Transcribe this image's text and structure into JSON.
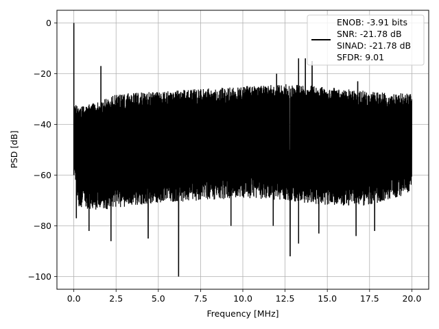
{
  "chart_data": {
    "type": "line",
    "title": "",
    "xlabel": "Frequency [MHz]",
    "ylabel": "PSD [dB]",
    "xlim": [
      -1.0,
      21.0
    ],
    "ylim": [
      -105,
      5
    ],
    "xticks": [
      0.0,
      2.5,
      5.0,
      7.5,
      10.0,
      12.5,
      15.0,
      17.5,
      20.0
    ],
    "xtick_labels": [
      "0.0",
      "2.5",
      "5.0",
      "7.5",
      "10.0",
      "12.5",
      "15.0",
      "17.5",
      "20.0"
    ],
    "yticks": [
      0,
      -20,
      -40,
      -60,
      -80,
      -100
    ],
    "ytick_labels": [
      "0",
      "−20",
      "−40",
      "−60",
      "−80",
      "−100"
    ],
    "grid": true,
    "legend_placement": "top-right",
    "series_color": "#000000",
    "x_start": 0.0,
    "x_end": 20.0,
    "envelope_x": [
      0.0,
      0.3,
      1.5,
      2.5,
      5.0,
      7.5,
      10.0,
      12.5,
      15.0,
      17.5,
      20.0
    ],
    "envelope_upper_db": [
      -31,
      -33,
      -31,
      -28,
      -27,
      -26,
      -25,
      -24,
      -25,
      -27,
      -28
    ],
    "envelope_lower_db": [
      -60,
      -73,
      -74,
      -73,
      -71,
      -70,
      -69,
      -70,
      -72,
      -72,
      -67
    ],
    "peaks": [
      {
        "x": 0.0,
        "db": 0
      },
      {
        "x": 1.6,
        "db": -17
      },
      {
        "x": 12.0,
        "db": -20
      },
      {
        "x": 13.3,
        "db": -14
      },
      {
        "x": 13.7,
        "db": -14
      },
      {
        "x": 14.1,
        "db": -15
      },
      {
        "x": 16.8,
        "db": -23
      }
    ],
    "dips": [
      {
        "x": 0.15,
        "db": -77
      },
      {
        "x": 0.9,
        "db": -82
      },
      {
        "x": 2.2,
        "db": -86
      },
      {
        "x": 4.4,
        "db": -85
      },
      {
        "x": 6.2,
        "db": -100
      },
      {
        "x": 9.3,
        "db": -80
      },
      {
        "x": 11.8,
        "db": -80
      },
      {
        "x": 12.8,
        "db": -92
      },
      {
        "x": 13.3,
        "db": -87
      },
      {
        "x": 14.5,
        "db": -83
      },
      {
        "x": 16.7,
        "db": -84
      },
      {
        "x": 17.8,
        "db": -82
      }
    ],
    "legend_lines": [
      "ENOB: -3.91 bits",
      "SNR: -21.78 dB",
      "SINAD: -21.78 dB",
      "SFDR: 9.01"
    ]
  }
}
